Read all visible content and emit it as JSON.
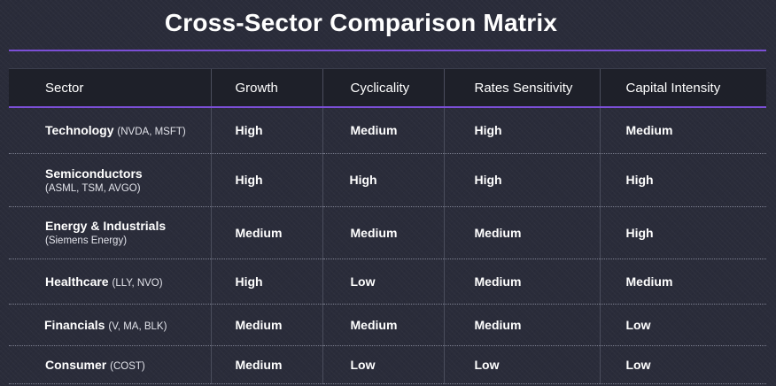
{
  "title": "Cross-Sector Comparison Matrix",
  "headers": [
    "Sector",
    "Growth",
    "Cyclicality",
    "Rates Sensitivity",
    "Capital Intensity"
  ],
  "rows": [
    {
      "sector": "Technology",
      "tickers": "(NVDA, MSFT)",
      "growth": "High",
      "cyclicality": "Medium",
      "rates": "High",
      "capital": "Medium"
    },
    {
      "sector": "Semiconductors",
      "tickers": "(ASML, TSM, AVGO)",
      "growth": "High",
      "cyclicality": "High",
      "rates": "High",
      "capital": "High"
    },
    {
      "sector": "Energy & Industrials",
      "tickers": "(Siemens Energy)",
      "growth": "Medium",
      "cyclicality": "Medium",
      "rates": "Medium",
      "capital": "High"
    },
    {
      "sector": "Healthcare",
      "tickers": "(LLY, NVO)",
      "growth": "High",
      "cyclicality": "Low",
      "rates": "Medium",
      "capital": "Medium"
    },
    {
      "sector": "Financials",
      "tickers": "(V, MA, BLK)",
      "growth": "Medium",
      "cyclicality": "Medium",
      "rates": "Medium",
      "capital": "Low"
    },
    {
      "sector": "Consumer",
      "tickers": "(COST)",
      "growth": "Medium",
      "cyclicality": "Low",
      "rates": "Low",
      "capital": "Low"
    }
  ],
  "colors": {
    "accent": "#7b4fd6",
    "background": "#2a2c3a",
    "header_background": "#1e2029"
  }
}
